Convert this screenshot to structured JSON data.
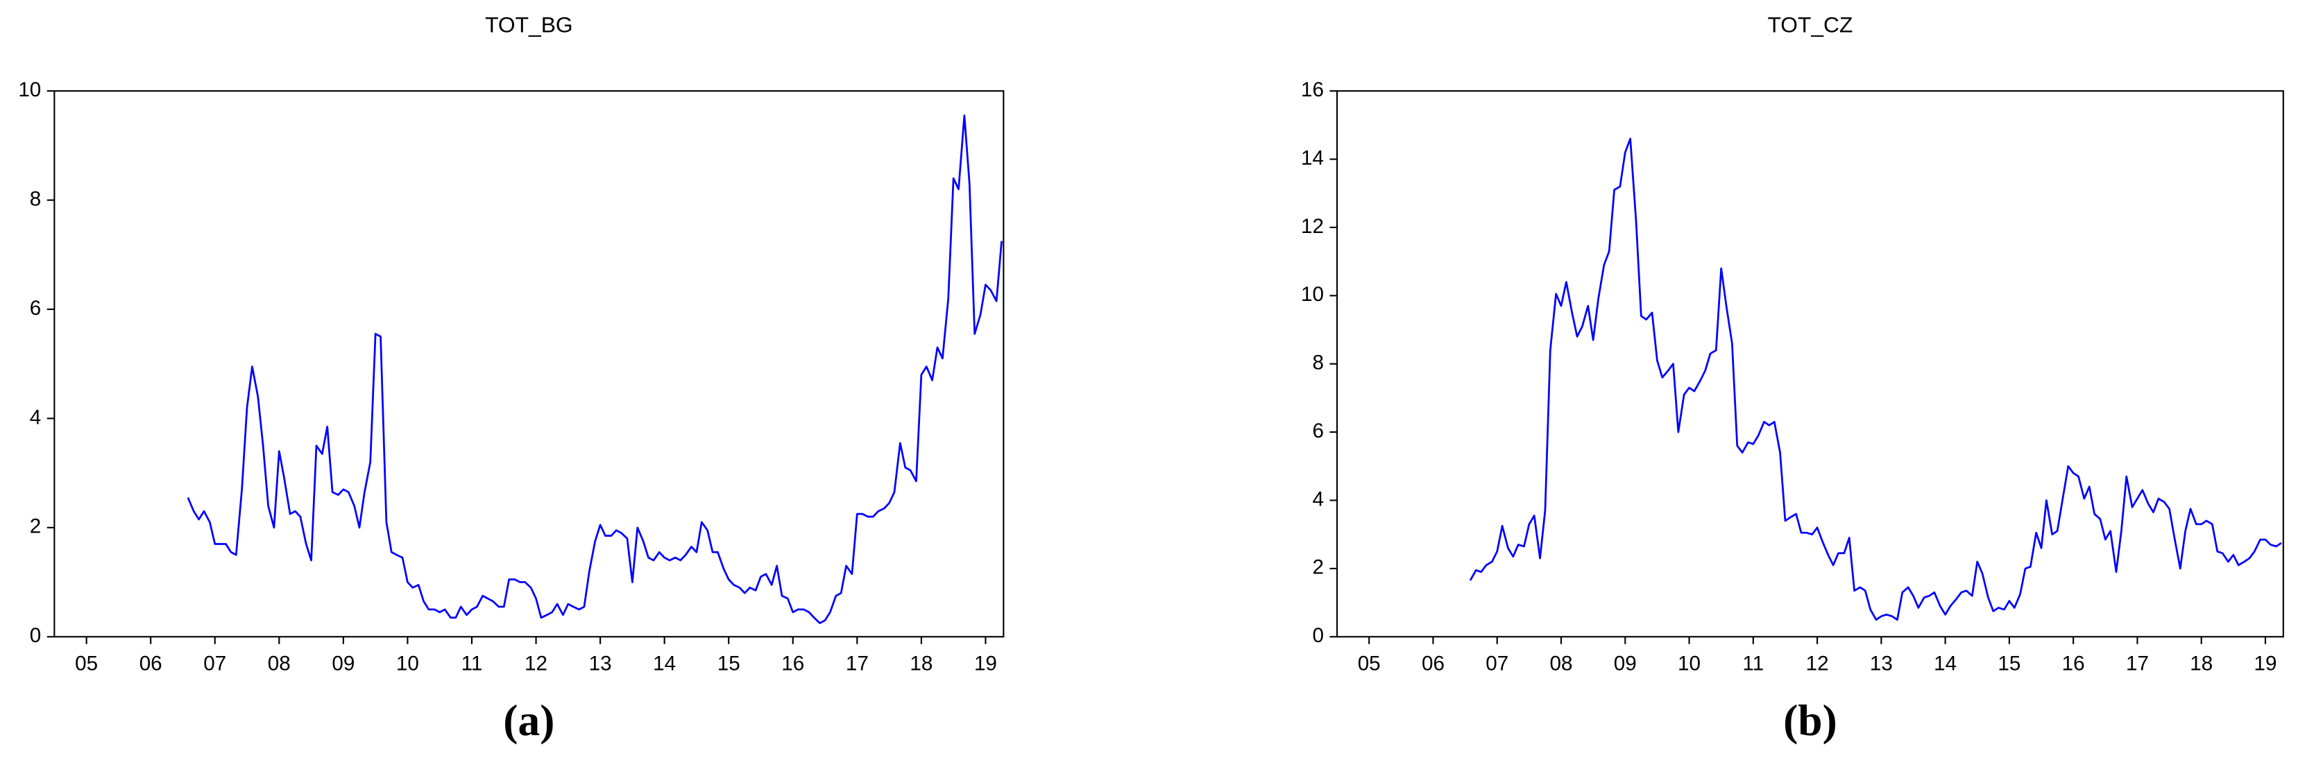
{
  "chart_data": [
    {
      "type": "line",
      "title": "TOT_BG",
      "caption": "(a)",
      "color": "#0000ff",
      "x": [
        2007.08,
        2007.17,
        2007.25,
        2007.33,
        2007.42,
        2007.5,
        2007.58,
        2007.67,
        2007.75,
        2007.83,
        2007.92,
        2008,
        2008.08,
        2008.17,
        2008.25,
        2008.33,
        2008.42,
        2008.5,
        2008.58,
        2008.67,
        2008.75,
        2008.83,
        2008.92,
        2009,
        2009.08,
        2009.17,
        2009.25,
        2009.33,
        2009.42,
        2009.5,
        2009.58,
        2009.67,
        2009.75,
        2009.83,
        2009.92,
        2010,
        2010.08,
        2010.17,
        2010.25,
        2010.33,
        2010.42,
        2010.5,
        2010.58,
        2010.67,
        2010.75,
        2010.83,
        2010.92,
        2011,
        2011.08,
        2011.17,
        2011.25,
        2011.33,
        2011.42,
        2011.5,
        2011.58,
        2011.67,
        2011.75,
        2011.83,
        2011.92,
        2012,
        2012.08,
        2012.17,
        2012.25,
        2012.33,
        2012.42,
        2012.5,
        2012.58,
        2012.67,
        2012.75,
        2012.83,
        2012.92,
        2013,
        2013.08,
        2013.17,
        2013.25,
        2013.33,
        2013.42,
        2013.5,
        2013.58,
        2013.67,
        2013.75,
        2013.83,
        2013.92,
        2014,
        2014.08,
        2014.17,
        2014.25,
        2014.33,
        2014.42,
        2014.5,
        2014.58,
        2014.67,
        2014.75,
        2014.83,
        2014.92,
        2015,
        2015.08,
        2015.17,
        2015.25,
        2015.33,
        2015.42,
        2015.5,
        2015.58,
        2015.67,
        2015.75,
        2015.83,
        2015.92,
        2016,
        2016.08,
        2016.17,
        2016.25,
        2016.33,
        2016.42,
        2016.5,
        2016.58,
        2016.67,
        2016.75,
        2016.83,
        2016.92,
        2017,
        2017.08,
        2017.17,
        2017.25,
        2017.33,
        2017.42,
        2017.5,
        2017.58,
        2017.67,
        2017.75,
        2017.83,
        2017.92,
        2018,
        2018.08,
        2018.17,
        2018.25,
        2018.33,
        2018.42,
        2018.5,
        2018.58,
        2018.67,
        2018.75,
        2018.83,
        2018.92,
        2019,
        2019.08,
        2019.17,
        2019.25,
        2019.33,
        2019.42,
        2019.5,
        2019.58,
        2019.67,
        2019.75
      ],
      "values": [
        2.55,
        2.3,
        2.15,
        2.3,
        2.1,
        1.7,
        1.7,
        1.7,
        1.55,
        1.5,
        2.7,
        4.2,
        4.95,
        4.4,
        3.5,
        2.4,
        2.0,
        3.4,
        2.9,
        2.25,
        2.3,
        2.2,
        1.7,
        1.4,
        3.5,
        3.35,
        3.85,
        2.65,
        2.6,
        2.7,
        2.65,
        2.4,
        2.0,
        2.65,
        3.2,
        5.55,
        5.5,
        2.1,
        1.55,
        1.5,
        1.45,
        1.0,
        0.9,
        0.95,
        0.65,
        0.5,
        0.5,
        0.45,
        0.5,
        0.35,
        0.35,
        0.55,
        0.4,
        0.5,
        0.55,
        0.75,
        0.7,
        0.65,
        0.55,
        0.55,
        1.05,
        1.05,
        1.0,
        1.0,
        0.9,
        0.7,
        0.35,
        0.4,
        0.45,
        0.6,
        0.4,
        0.6,
        0.55,
        0.5,
        0.55,
        1.2,
        1.75,
        2.05,
        1.85,
        1.85,
        1.95,
        1.9,
        1.8,
        1.0,
        2.0,
        1.75,
        1.45,
        1.4,
        1.55,
        1.45,
        1.4,
        1.45,
        1.4,
        1.5,
        1.65,
        1.55,
        2.1,
        1.95,
        1.55,
        1.55,
        1.25,
        1.05,
        0.95,
        0.9,
        0.8,
        0.9,
        0.85,
        1.1,
        1.15,
        0.95,
        1.3,
        0.75,
        0.7,
        0.45,
        0.5,
        0.5,
        0.45,
        0.35,
        0.25,
        0.3,
        0.45,
        0.75,
        0.8,
        1.3,
        1.15,
        2.25,
        2.25,
        2.2,
        2.2,
        2.3,
        2.35,
        2.45,
        2.65,
        3.55,
        3.1,
        3.05,
        2.85,
        4.8,
        4.95,
        4.7,
        5.3,
        5.1,
        6.2,
        8.4,
        8.2,
        9.55,
        8.3,
        5.55,
        5.9,
        6.45,
        6.35,
        6.15,
        7.25
      ],
      "xlim": [
        2005,
        2019.78
      ],
      "xticks": [
        {
          "value": 2005.5,
          "label": "05"
        },
        {
          "value": 2006.5,
          "label": "06"
        },
        {
          "value": 2007.5,
          "label": "07"
        },
        {
          "value": 2008.5,
          "label": "08"
        },
        {
          "value": 2009.5,
          "label": "09"
        },
        {
          "value": 2010.5,
          "label": "10"
        },
        {
          "value": 2011.5,
          "label": "11"
        },
        {
          "value": 2012.5,
          "label": "12"
        },
        {
          "value": 2013.5,
          "label": "13"
        },
        {
          "value": 2014.5,
          "label": "14"
        },
        {
          "value": 2015.5,
          "label": "15"
        },
        {
          "value": 2016.5,
          "label": "16"
        },
        {
          "value": 2017.5,
          "label": "17"
        },
        {
          "value": 2018.5,
          "label": "18"
        },
        {
          "value": 2019.5,
          "label": "19"
        }
      ],
      "ylim": [
        0,
        10
      ],
      "yticks": [
        0,
        2,
        4,
        6,
        8,
        10
      ]
    },
    {
      "type": "line",
      "title": "TOT_CZ",
      "caption": "(b)",
      "color": "#0000ff",
      "x": [
        2007.08,
        2007.17,
        2007.25,
        2007.33,
        2007.42,
        2007.5,
        2007.58,
        2007.67,
        2007.75,
        2007.83,
        2007.92,
        2008,
        2008.08,
        2008.17,
        2008.25,
        2008.33,
        2008.42,
        2008.5,
        2008.58,
        2008.67,
        2008.75,
        2008.83,
        2008.92,
        2009,
        2009.08,
        2009.17,
        2009.25,
        2009.33,
        2009.42,
        2009.5,
        2009.58,
        2009.67,
        2009.75,
        2009.83,
        2009.92,
        2010,
        2010.08,
        2010.17,
        2010.25,
        2010.33,
        2010.42,
        2010.5,
        2010.58,
        2010.67,
        2010.75,
        2010.83,
        2010.92,
        2011,
        2011.08,
        2011.17,
        2011.25,
        2011.33,
        2011.42,
        2011.5,
        2011.58,
        2011.67,
        2011.75,
        2011.83,
        2011.92,
        2012,
        2012.08,
        2012.17,
        2012.25,
        2012.33,
        2012.42,
        2012.5,
        2012.58,
        2012.67,
        2012.75,
        2012.83,
        2012.92,
        2013,
        2013.08,
        2013.17,
        2013.25,
        2013.33,
        2013.42,
        2013.5,
        2013.58,
        2013.67,
        2013.75,
        2013.83,
        2013.92,
        2014,
        2014.08,
        2014.17,
        2014.25,
        2014.33,
        2014.42,
        2014.5,
        2014.58,
        2014.67,
        2014.75,
        2014.83,
        2014.92,
        2015,
        2015.08,
        2015.17,
        2015.25,
        2015.33,
        2015.42,
        2015.5,
        2015.58,
        2015.67,
        2015.75,
        2015.83,
        2015.92,
        2016,
        2016.08,
        2016.17,
        2016.25,
        2016.33,
        2016.42,
        2016.5,
        2016.58,
        2016.67,
        2016.75,
        2016.83,
        2016.92,
        2017,
        2017.08,
        2017.17,
        2017.25,
        2017.33,
        2017.42,
        2017.5,
        2017.58,
        2017.67,
        2017.75,
        2017.83,
        2017.92,
        2018,
        2018.08,
        2018.17,
        2018.25,
        2018.33,
        2018.42,
        2018.5,
        2018.58,
        2018.67,
        2018.75,
        2018.83,
        2018.92,
        2019,
        2019.08,
        2019.17,
        2019.25,
        2019.33,
        2019.42,
        2019.5,
        2019.58,
        2019.67,
        2019.75
      ],
      "values": [
        1.65,
        1.95,
        1.9,
        2.1,
        2.2,
        2.5,
        3.25,
        2.6,
        2.35,
        2.7,
        2.65,
        3.3,
        3.55,
        2.3,
        3.7,
        8.4,
        10.05,
        9.7,
        10.4,
        9.5,
        8.8,
        9.1,
        9.7,
        8.7,
        9.9,
        10.9,
        11.3,
        13.1,
        13.2,
        14.2,
        14.6,
        12.2,
        9.4,
        9.3,
        9.5,
        8.1,
        7.6,
        7.8,
        8.0,
        6.0,
        7.1,
        7.3,
        7.2,
        7.5,
        7.8,
        8.3,
        8.4,
        10.8,
        9.7,
        8.6,
        5.6,
        5.4,
        5.7,
        5.65,
        5.9,
        6.3,
        6.2,
        6.3,
        5.4,
        3.4,
        3.5,
        3.6,
        3.05,
        3.05,
        3.0,
        3.2,
        2.8,
        2.4,
        2.1,
        2.45,
        2.45,
        2.9,
        1.35,
        1.45,
        1.35,
        0.8,
        0.5,
        0.6,
        0.65,
        0.6,
        0.5,
        1.3,
        1.45,
        1.2,
        0.85,
        1.15,
        1.2,
        1.3,
        0.9,
        0.65,
        0.9,
        1.1,
        1.3,
        1.35,
        1.2,
        2.2,
        1.85,
        1.15,
        0.75,
        0.85,
        0.8,
        1.05,
        0.85,
        1.25,
        2.0,
        2.05,
        3.05,
        2.6,
        4.0,
        3.0,
        3.1,
        4.0,
        5.0,
        4.8,
        4.7,
        4.05,
        4.4,
        3.6,
        3.45,
        2.85,
        3.1,
        1.9,
        3.1,
        4.7,
        3.8,
        4.05,
        4.3,
        3.9,
        3.65,
        4.05,
        3.95,
        3.75,
        2.9,
        2.0,
        3.1,
        3.75,
        3.3,
        3.3,
        3.4,
        3.3,
        2.5,
        2.45,
        2.2,
        2.4,
        2.1,
        2.2,
        2.3,
        2.5,
        2.85,
        2.85,
        2.7,
        2.65,
        2.75
      ],
      "xlim": [
        2005,
        2019.78
      ],
      "xticks": [
        {
          "value": 2005.5,
          "label": "05"
        },
        {
          "value": 2006.5,
          "label": "06"
        },
        {
          "value": 2007.5,
          "label": "07"
        },
        {
          "value": 2008.5,
          "label": "08"
        },
        {
          "value": 2009.5,
          "label": "09"
        },
        {
          "value": 2010.5,
          "label": "10"
        },
        {
          "value": 2011.5,
          "label": "11"
        },
        {
          "value": 2012.5,
          "label": "12"
        },
        {
          "value": 2013.5,
          "label": "13"
        },
        {
          "value": 2014.5,
          "label": "14"
        },
        {
          "value": 2015.5,
          "label": "15"
        },
        {
          "value": 2016.5,
          "label": "16"
        },
        {
          "value": 2017.5,
          "label": "17"
        },
        {
          "value": 2018.5,
          "label": "18"
        },
        {
          "value": 2019.5,
          "label": "19"
        }
      ],
      "ylim": [
        0,
        16
      ],
      "yticks": [
        0,
        2,
        4,
        6,
        8,
        10,
        12,
        14,
        16
      ]
    }
  ]
}
